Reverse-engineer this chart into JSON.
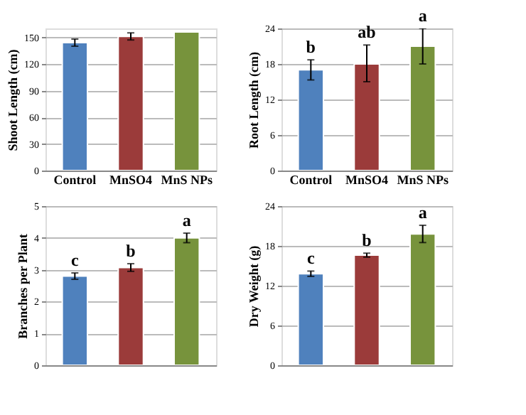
{
  "chart_data": [
    {
      "type": "bar",
      "ylabel": "Shoot Length (cm)",
      "categories": [
        "Control",
        "MnSO4",
        "MnS NPs"
      ],
      "values": [
        144,
        151,
        156
      ],
      "colors": [
        "#4f81bd",
        "#9b3b3a",
        "#77933c"
      ],
      "errors": [
        4,
        4,
        null
      ],
      "ylim": [
        0,
        160
      ],
      "yticks": [
        0,
        30,
        60,
        90,
        120,
        150
      ],
      "grid": "y"
    },
    {
      "type": "bar",
      "ylabel": "Root Length (cm)",
      "categories": [
        "Control",
        "MnSO4",
        "MnS NPs"
      ],
      "values": [
        17,
        18,
        21
      ],
      "colors": [
        "#4f81bd",
        "#9b3b3a",
        "#77933c"
      ],
      "errors": [
        [
          15.3,
          18.7
        ],
        [
          15,
          21.2
        ],
        [
          18,
          24
        ]
      ],
      "ylim": [
        0,
        24
      ],
      "yticks": [
        0,
        6,
        12,
        18,
        24
      ],
      "grid": "y",
      "annotations": [
        {
          "text": "b",
          "x": "Control",
          "y": 18.7
        },
        {
          "text": "ab",
          "x": "MnSO4",
          "y": 21.2
        },
        {
          "text": "a",
          "x": "MnS NPs",
          "y": 24
        }
      ]
    },
    {
      "type": "bar",
      "ylabel": "Branches per Plant",
      "categories": [
        "Control",
        "MnSO4",
        "MnS NPs"
      ],
      "values": [
        2.8,
        3.07,
        4.0
      ],
      "colors": [
        "#4f81bd",
        "#9b3b3a",
        "#77933c"
      ],
      "errors": [
        0.1,
        0.12,
        0.15
      ],
      "ylim": [
        0,
        5
      ],
      "yticks": [
        0,
        1,
        2,
        3,
        4,
        5
      ],
      "grid": "y",
      "tick_labels": "y",
      "annotations": [
        {
          "text": "c",
          "x": "Control",
          "y": 2.9
        },
        {
          "text": "b",
          "x": "MnSO4",
          "y": 3.19
        },
        {
          "text": "a",
          "x": "MnS NPs",
          "y": 4.15
        }
      ]
    },
    {
      "type": "bar",
      "ylabel": "Dry Weight (g)",
      "categories": [
        "Control",
        "MnSO4",
        "MnS NPs"
      ],
      "values": [
        13.8,
        16.6,
        19.8
      ],
      "colors": [
        "#4f81bd",
        "#9b3b3a",
        "#77933c"
      ],
      "errors": [
        0.4,
        0.3,
        1.3
      ],
      "ylim": [
        0,
        24
      ],
      "yticks": [
        0,
        6,
        12,
        18,
        24
      ],
      "grid": "y",
      "tick_labels": "y",
      "annotations": [
        {
          "text": "c",
          "x": "Control",
          "y": 14.2
        },
        {
          "text": "b",
          "x": "MnSO4",
          "y": 16.9
        },
        {
          "text": "a",
          "x": "MnS NPs",
          "y": 21.1
        }
      ]
    }
  ]
}
